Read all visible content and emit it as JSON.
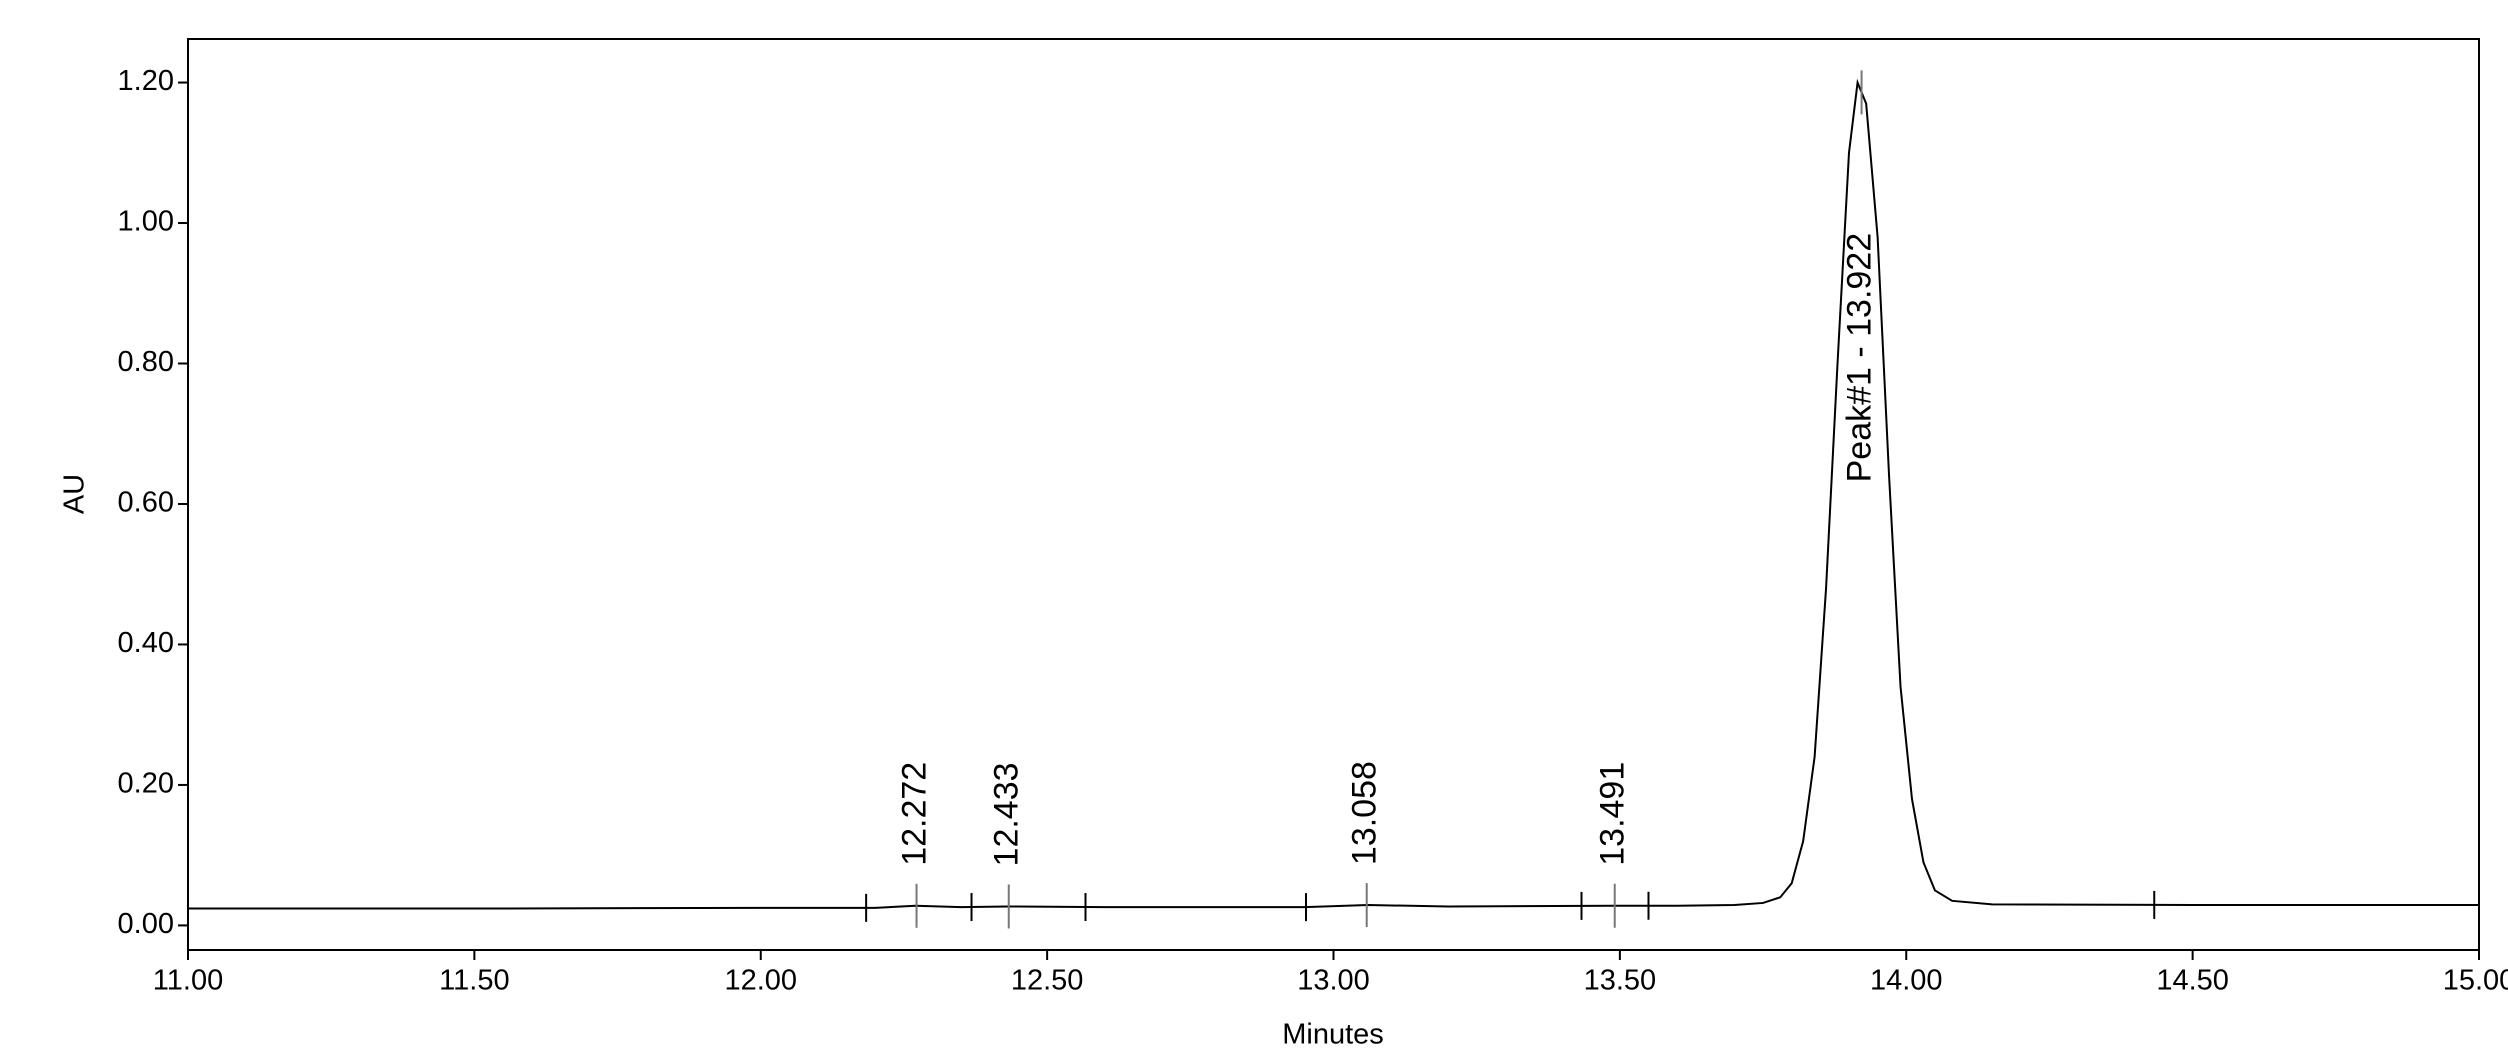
{
  "chart_data": {
    "type": "line",
    "x_label": "Minutes",
    "y_label": "AU",
    "xlim": [
      11,
      15
    ],
    "ylim": [
      -0.035,
      1.262
    ],
    "xticks": [
      {
        "value": 11,
        "label": "11.00"
      },
      {
        "value": 11.5,
        "label": "11.50"
      },
      {
        "value": 12,
        "label": "12.00"
      },
      {
        "value": 12.5,
        "label": "12.50"
      },
      {
        "value": 13,
        "label": "13.00"
      },
      {
        "value": 13.5,
        "label": "13.50"
      },
      {
        "value": 14,
        "label": "14.00"
      },
      {
        "value": 14.5,
        "label": "14.50"
      },
      {
        "value": 15,
        "label": "15.00"
      }
    ],
    "yticks": [
      {
        "value": 0,
        "label": "0.00"
      },
      {
        "value": 0.2,
        "label": "0.20"
      },
      {
        "value": 0.4,
        "label": "0.40"
      },
      {
        "value": 0.6,
        "label": "0.60"
      },
      {
        "value": 0.8,
        "label": "0.80"
      },
      {
        "value": 1,
        "label": "1.00"
      },
      {
        "value": 1.2,
        "label": "1.20"
      }
    ],
    "color": "#000000",
    "x": [
      11.0,
      11.5,
      12.0,
      12.2,
      12.27,
      12.35,
      12.43,
      12.6,
      12.95,
      13.06,
      13.2,
      13.49,
      13.6,
      13.7,
      13.75,
      13.78,
      13.8,
      13.82,
      13.84,
      13.86,
      13.88,
      13.9,
      13.915,
      13.93,
      13.95,
      13.97,
      13.99,
      14.01,
      14.03,
      14.05,
      14.08,
      14.15,
      14.5,
      15.0
    ],
    "values": [
      0.024,
      0.024,
      0.025,
      0.025,
      0.028,
      0.026,
      0.027,
      0.026,
      0.026,
      0.029,
      0.027,
      0.028,
      0.028,
      0.029,
      0.032,
      0.04,
      0.06,
      0.12,
      0.24,
      0.48,
      0.8,
      1.1,
      1.2,
      1.17,
      0.98,
      0.64,
      0.34,
      0.18,
      0.09,
      0.05,
      0.035,
      0.03,
      0.029,
      0.029
    ],
    "peaks": [
      {
        "value": 12.272,
        "label": "12.272"
      },
      {
        "value": 12.433,
        "label": "12.433"
      },
      {
        "value": 13.058,
        "label": "13.058"
      },
      {
        "value": 13.491,
        "label": "13.491"
      },
      {
        "value": 13.922,
        "label": "Peak#1 - 13.922"
      }
    ],
    "delimiters": [
      12.184,
      12.368,
      12.567,
      12.952,
      13.433,
      13.55,
      14.433
    ]
  }
}
